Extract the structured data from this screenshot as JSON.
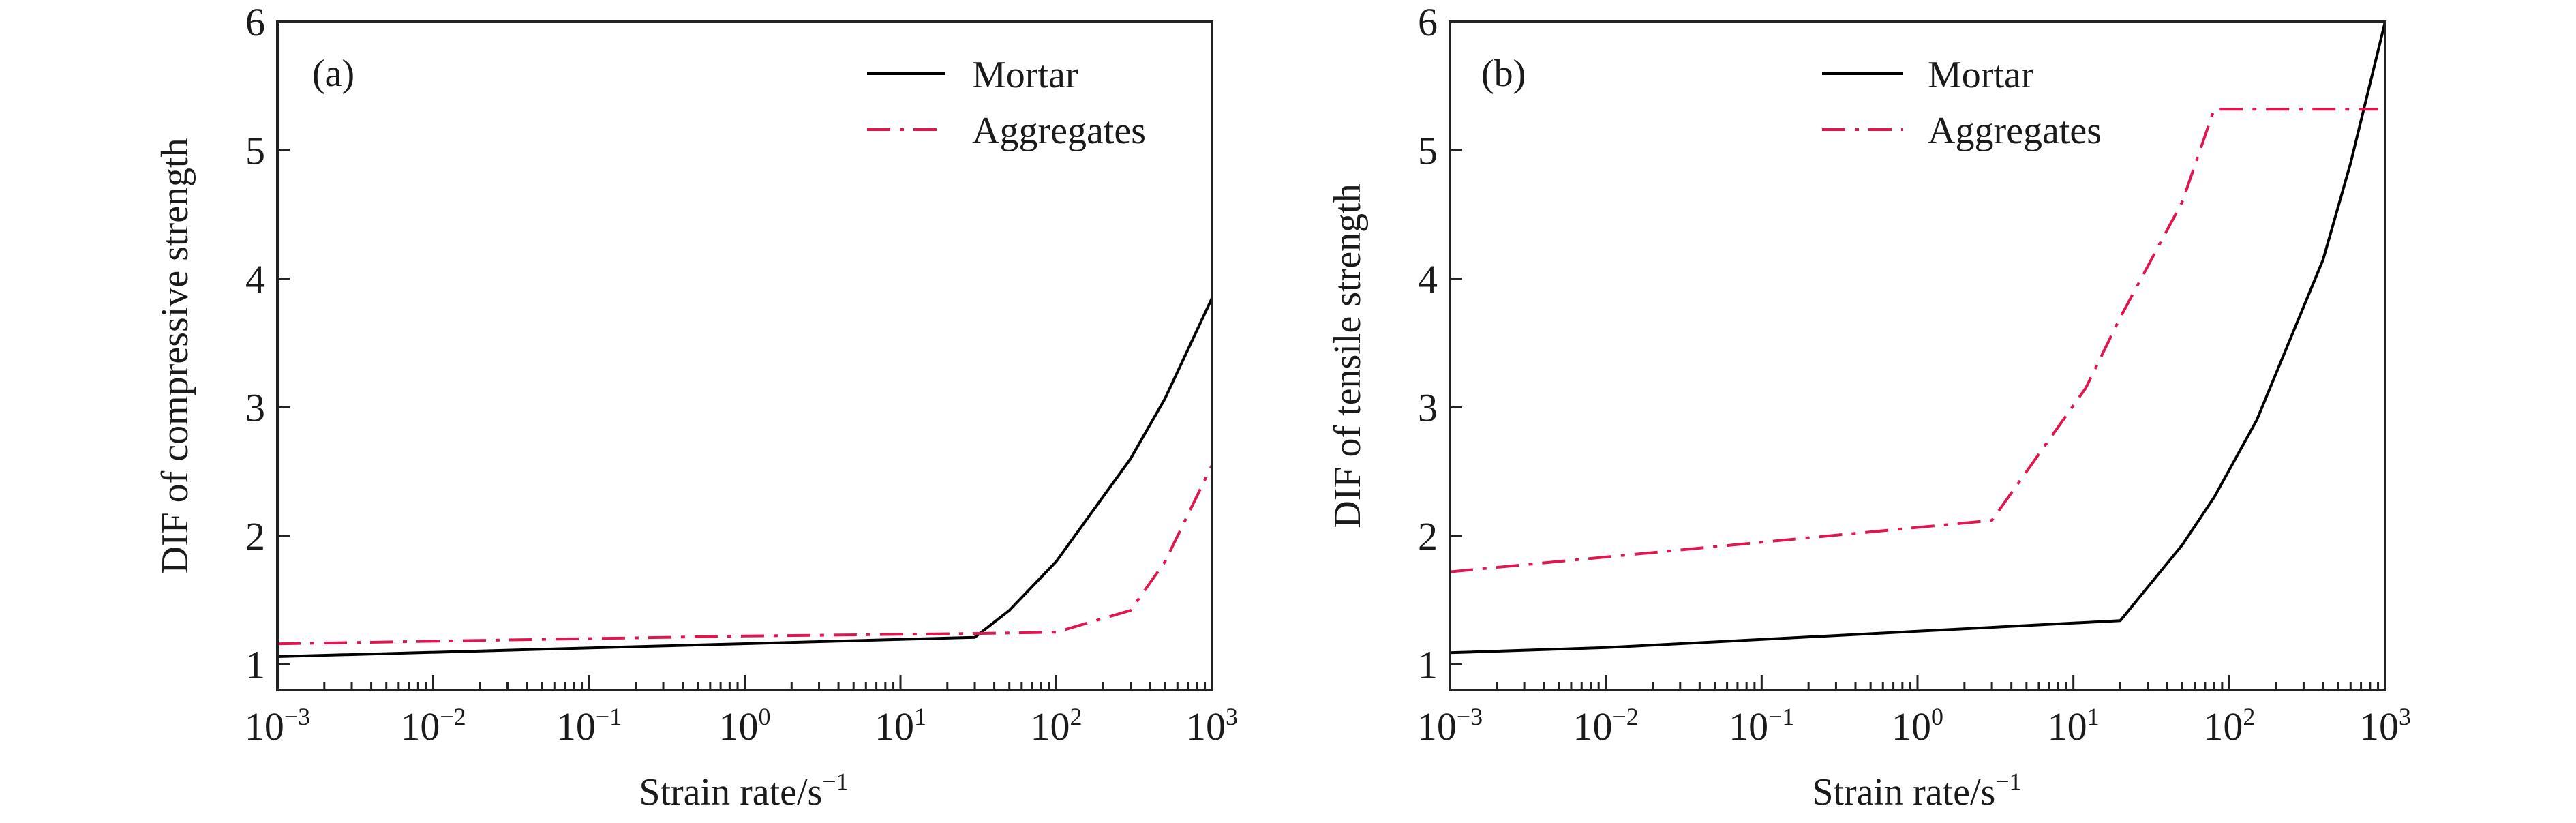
{
  "chart_data": [
    {
      "type": "line",
      "panel_label": "(a)",
      "xlabel": "Strain rate/s",
      "xlabel_exp": "−1",
      "ylabel": "DIF of compressive strength",
      "xscale": "log",
      "xlim": [
        0.001,
        1000
      ],
      "ylim": [
        0.8,
        6
      ],
      "x_ticks": [
        {
          "base": "10",
          "exp": "−3"
        },
        {
          "base": "10",
          "exp": "−2"
        },
        {
          "base": "10",
          "exp": "−1"
        },
        {
          "base": "10",
          "exp": "0"
        },
        {
          "base": "10",
          "exp": "1"
        },
        {
          "base": "10",
          "exp": "2"
        },
        {
          "base": "10",
          "exp": "3"
        }
      ],
      "y_ticks": [
        "1",
        "2",
        "3",
        "4",
        "5",
        "6"
      ],
      "legend_placement": "top-right",
      "series": [
        {
          "name": "Mortar",
          "color": "#000000",
          "style": "solid",
          "x": [
            0.001,
            30,
            50,
            100,
            300,
            500,
            1000
          ],
          "y": [
            1.06,
            1.21,
            1.42,
            1.8,
            2.6,
            3.07,
            3.85
          ]
        },
        {
          "name": "Aggregates",
          "color": "#e0174f",
          "style": "dashdot",
          "x": [
            0.001,
            1,
            30,
            100,
            300,
            500,
            1000
          ],
          "y": [
            1.16,
            1.22,
            1.24,
            1.25,
            1.42,
            1.8,
            2.55
          ]
        }
      ]
    },
    {
      "type": "line",
      "panel_label": "(b)",
      "xlabel": "Strain rate/s",
      "xlabel_exp": "−1",
      "ylabel": "DIF of tensile strength",
      "xscale": "log",
      "xlim": [
        0.001,
        1000
      ],
      "ylim": [
        0.8,
        6
      ],
      "x_ticks": [
        {
          "base": "10",
          "exp": "−3"
        },
        {
          "base": "10",
          "exp": "−2"
        },
        {
          "base": "10",
          "exp": "−1"
        },
        {
          "base": "10",
          "exp": "0"
        },
        {
          "base": "10",
          "exp": "1"
        },
        {
          "base": "10",
          "exp": "2"
        },
        {
          "base": "10",
          "exp": "3"
        }
      ],
      "y_ticks": [
        "1",
        "2",
        "3",
        "4",
        "5",
        "6"
      ],
      "legend_placement": "top-center",
      "series": [
        {
          "name": "Mortar",
          "color": "#000000",
          "style": "solid",
          "x": [
            0.001,
            0.01,
            20,
            50,
            80,
            150,
            400,
            600,
            1000
          ],
          "y": [
            1.09,
            1.13,
            1.34,
            1.93,
            2.3,
            2.9,
            4.15,
            4.9,
            6.0
          ]
        },
        {
          "name": "Aggregates",
          "color": "#e0174f",
          "style": "dashdot",
          "x": [
            0.001,
            3,
            12,
            20,
            50,
            80,
            900
          ],
          "y": [
            1.72,
            2.12,
            3.15,
            3.7,
            4.6,
            5.32,
            5.32
          ]
        }
      ]
    }
  ]
}
